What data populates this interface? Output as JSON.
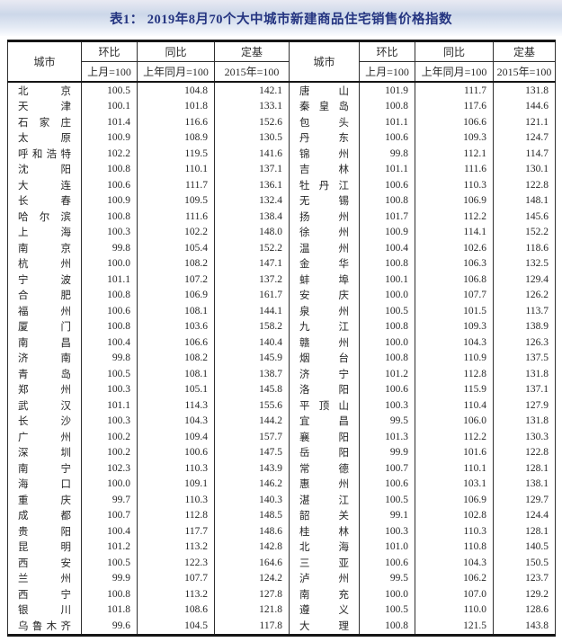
{
  "title": "表1： 2019年8月70个大中城市新建商品住宅销售价格指数",
  "table": {
    "header": {
      "city": "城市",
      "mom": "环比",
      "mom_base": "上月=100",
      "yoy": "同比",
      "yoy_base": "上年同月=100",
      "fixed": "定基",
      "fixed_base": "2015年=100"
    },
    "left_rows": [
      [
        "北京",
        "100.5",
        "104.8",
        "142.1"
      ],
      [
        "天津",
        "100.1",
        "101.8",
        "133.1"
      ],
      [
        "石家庄",
        "101.4",
        "116.6",
        "152.6"
      ],
      [
        "太原",
        "100.9",
        "108.9",
        "130.5"
      ],
      [
        "呼和浩特",
        "102.2",
        "119.5",
        "141.6"
      ],
      [
        "沈阳",
        "100.8",
        "110.1",
        "137.1"
      ],
      [
        "大连",
        "100.6",
        "111.7",
        "136.1"
      ],
      [
        "长春",
        "100.9",
        "109.5",
        "132.4"
      ],
      [
        "哈尔滨",
        "100.8",
        "111.6",
        "138.4"
      ],
      [
        "上海",
        "100.3",
        "102.2",
        "148.0"
      ],
      [
        "南京",
        "99.8",
        "105.4",
        "152.2"
      ],
      [
        "杭州",
        "100.0",
        "108.2",
        "147.1"
      ],
      [
        "宁波",
        "101.1",
        "107.2",
        "137.2"
      ],
      [
        "合肥",
        "100.8",
        "106.9",
        "161.7"
      ],
      [
        "福州",
        "100.6",
        "108.1",
        "144.1"
      ],
      [
        "厦门",
        "100.8",
        "103.6",
        "158.2"
      ],
      [
        "南昌",
        "100.4",
        "106.6",
        "140.4"
      ],
      [
        "济南",
        "99.8",
        "108.2",
        "145.9"
      ],
      [
        "青岛",
        "100.5",
        "108.1",
        "138.7"
      ],
      [
        "郑州",
        "100.3",
        "105.1",
        "145.8"
      ],
      [
        "武汉",
        "101.1",
        "114.3",
        "155.6"
      ],
      [
        "长沙",
        "100.3",
        "104.3",
        "144.2"
      ],
      [
        "广州",
        "100.2",
        "109.4",
        "157.7"
      ],
      [
        "深圳",
        "100.2",
        "100.6",
        "147.5"
      ],
      [
        "南宁",
        "102.3",
        "110.3",
        "143.9"
      ],
      [
        "海口",
        "100.0",
        "109.1",
        "146.2"
      ],
      [
        "重庆",
        "99.7",
        "110.3",
        "140.3"
      ],
      [
        "成都",
        "100.7",
        "112.8",
        "148.5"
      ],
      [
        "贵阳",
        "100.4",
        "117.7",
        "148.6"
      ],
      [
        "昆明",
        "101.2",
        "113.2",
        "142.8"
      ],
      [
        "西安",
        "100.5",
        "122.3",
        "164.6"
      ],
      [
        "兰州",
        "99.9",
        "107.7",
        "124.2"
      ],
      [
        "西宁",
        "100.8",
        "113.2",
        "127.8"
      ],
      [
        "银川",
        "101.8",
        "108.6",
        "121.8"
      ],
      [
        "乌鲁木齐",
        "99.6",
        "104.5",
        "117.8"
      ]
    ],
    "right_rows": [
      [
        "唐山",
        "101.9",
        "111.7",
        "131.8"
      ],
      [
        "秦皇岛",
        "100.8",
        "117.6",
        "144.6"
      ],
      [
        "包头",
        "101.1",
        "106.6",
        "121.1"
      ],
      [
        "丹东",
        "100.6",
        "109.3",
        "124.7"
      ],
      [
        "锦州",
        "99.8",
        "112.1",
        "114.7"
      ],
      [
        "吉林",
        "101.1",
        "111.6",
        "130.1"
      ],
      [
        "牡丹江",
        "100.6",
        "110.3",
        "122.8"
      ],
      [
        "无锡",
        "100.8",
        "106.9",
        "148.1"
      ],
      [
        "扬州",
        "101.7",
        "112.2",
        "145.6"
      ],
      [
        "徐州",
        "100.9",
        "114.1",
        "152.2"
      ],
      [
        "温州",
        "100.4",
        "102.6",
        "118.6"
      ],
      [
        "金华",
        "100.8",
        "106.3",
        "132.5"
      ],
      [
        "蚌埠",
        "100.1",
        "106.8",
        "129.4"
      ],
      [
        "安庆",
        "100.0",
        "107.7",
        "126.2"
      ],
      [
        "泉州",
        "100.5",
        "101.5",
        "113.7"
      ],
      [
        "九江",
        "100.8",
        "109.3",
        "138.9"
      ],
      [
        "赣州",
        "100.0",
        "104.3",
        "126.3"
      ],
      [
        "烟台",
        "100.8",
        "110.9",
        "137.5"
      ],
      [
        "济宁",
        "101.2",
        "112.8",
        "131.8"
      ],
      [
        "洛阳",
        "100.6",
        "115.9",
        "137.1"
      ],
      [
        "平顶山",
        "100.3",
        "110.4",
        "127.9"
      ],
      [
        "宜昌",
        "99.5",
        "106.0",
        "131.8"
      ],
      [
        "襄阳",
        "101.3",
        "112.2",
        "130.3"
      ],
      [
        "岳阳",
        "99.9",
        "101.6",
        "122.8"
      ],
      [
        "常德",
        "100.7",
        "110.1",
        "128.1"
      ],
      [
        "惠州",
        "100.6",
        "103.1",
        "138.1"
      ],
      [
        "湛江",
        "100.5",
        "106.9",
        "129.7"
      ],
      [
        "韶关",
        "99.1",
        "102.8",
        "124.4"
      ],
      [
        "桂林",
        "100.3",
        "110.3",
        "128.1"
      ],
      [
        "北海",
        "101.0",
        "110.8",
        "140.5"
      ],
      [
        "三亚",
        "100.6",
        "104.3",
        "150.5"
      ],
      [
        "泸州",
        "99.5",
        "106.2",
        "123.7"
      ],
      [
        "南充",
        "100.0",
        "107.0",
        "129.2"
      ],
      [
        "遵义",
        "100.5",
        "110.0",
        "128.6"
      ],
      [
        "大理",
        "100.8",
        "121.5",
        "143.8"
      ]
    ]
  },
  "colors": {
    "title_text": "#253581",
    "banner_top": "#e9eaf3",
    "banner_mid": "#ccd7e9",
    "border_dark": "#151515",
    "body_text": "#262626"
  }
}
